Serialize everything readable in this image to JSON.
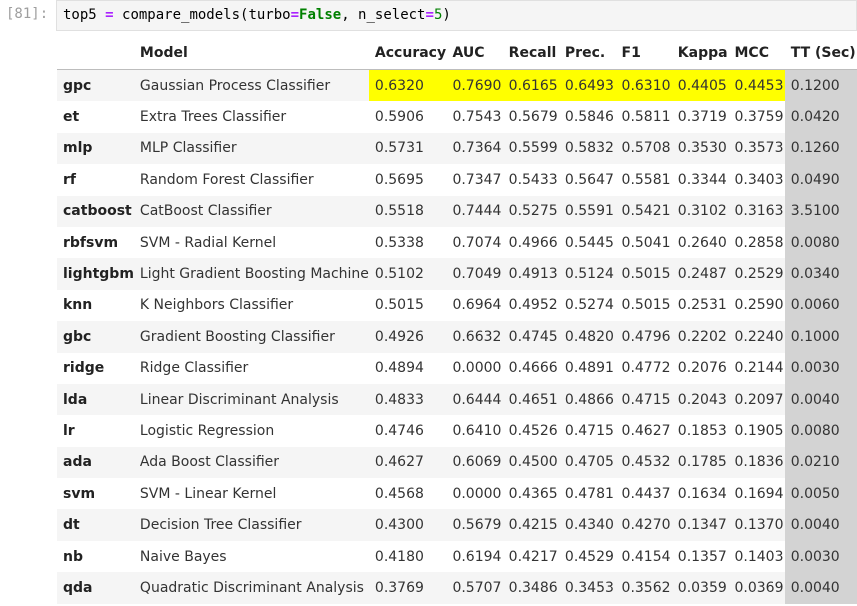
{
  "cell": {
    "prompt": "[81]:",
    "code": {
      "func": "top5 ",
      "eq": "=",
      "call": " compare_models(turbo",
      "eq2": "=",
      "kw": "False",
      "mid": ", n_select",
      "eq3": "=",
      "num": "5",
      "end": ")"
    }
  },
  "table": {
    "headers": [
      "",
      "Model",
      "Accuracy",
      "AUC",
      "Recall",
      "Prec.",
      "F1",
      "Kappa",
      "MCC",
      "TT (Sec)"
    ],
    "rows": [
      [
        "gpc",
        "Gaussian Process Classifier",
        "0.6320",
        "0.7690",
        "0.6165",
        "0.6493",
        "0.6310",
        "0.4405",
        "0.4453",
        "0.1200"
      ],
      [
        "et",
        "Extra Trees Classifier",
        "0.5906",
        "0.7543",
        "0.5679",
        "0.5846",
        "0.5811",
        "0.3719",
        "0.3759",
        "0.0420"
      ],
      [
        "mlp",
        "MLP Classifier",
        "0.5731",
        "0.7364",
        "0.5599",
        "0.5832",
        "0.5708",
        "0.3530",
        "0.3573",
        "0.1260"
      ],
      [
        "rf",
        "Random Forest Classifier",
        "0.5695",
        "0.7347",
        "0.5433",
        "0.5647",
        "0.5581",
        "0.3344",
        "0.3403",
        "0.0490"
      ],
      [
        "catboost",
        "CatBoost Classifier",
        "0.5518",
        "0.7444",
        "0.5275",
        "0.5591",
        "0.5421",
        "0.3102",
        "0.3163",
        "3.5100"
      ],
      [
        "rbfsvm",
        "SVM - Radial Kernel",
        "0.5338",
        "0.7074",
        "0.4966",
        "0.5445",
        "0.5041",
        "0.2640",
        "0.2858",
        "0.0080"
      ],
      [
        "lightgbm",
        "Light Gradient Boosting Machine",
        "0.5102",
        "0.7049",
        "0.4913",
        "0.5124",
        "0.5015",
        "0.2487",
        "0.2529",
        "0.0340"
      ],
      [
        "knn",
        "K Neighbors Classifier",
        "0.5015",
        "0.6964",
        "0.4952",
        "0.5274",
        "0.5015",
        "0.2531",
        "0.2590",
        "0.0060"
      ],
      [
        "gbc",
        "Gradient Boosting Classifier",
        "0.4926",
        "0.6632",
        "0.4745",
        "0.4820",
        "0.4796",
        "0.2202",
        "0.2240",
        "0.1000"
      ],
      [
        "ridge",
        "Ridge Classifier",
        "0.4894",
        "0.0000",
        "0.4666",
        "0.4891",
        "0.4772",
        "0.2076",
        "0.2144",
        "0.0030"
      ],
      [
        "lda",
        "Linear Discriminant Analysis",
        "0.4833",
        "0.6444",
        "0.4651",
        "0.4866",
        "0.4715",
        "0.2043",
        "0.2097",
        "0.0040"
      ],
      [
        "lr",
        "Logistic Regression",
        "0.4746",
        "0.6410",
        "0.4526",
        "0.4715",
        "0.4627",
        "0.1853",
        "0.1905",
        "0.0080"
      ],
      [
        "ada",
        "Ada Boost Classifier",
        "0.4627",
        "0.6069",
        "0.4500",
        "0.4705",
        "0.4532",
        "0.1785",
        "0.1836",
        "0.0210"
      ],
      [
        "svm",
        "SVM - Linear Kernel",
        "0.4568",
        "0.0000",
        "0.4365",
        "0.4781",
        "0.4437",
        "0.1634",
        "0.1694",
        "0.0050"
      ],
      [
        "dt",
        "Decision Tree Classifier",
        "0.4300",
        "0.5679",
        "0.4215",
        "0.4340",
        "0.4270",
        "0.1347",
        "0.1370",
        "0.0040"
      ],
      [
        "nb",
        "Naive Bayes",
        "0.4180",
        "0.6194",
        "0.4217",
        "0.4529",
        "0.4154",
        "0.1357",
        "0.1403",
        "0.0030"
      ],
      [
        "qda",
        "Quadratic Discriminant Analysis",
        "0.3769",
        "0.5707",
        "0.3486",
        "0.3453",
        "0.3562",
        "0.0359",
        "0.0369",
        "0.0040"
      ]
    ],
    "highlight_color": "#ffff00",
    "tt_color": "#d3d3d3"
  }
}
